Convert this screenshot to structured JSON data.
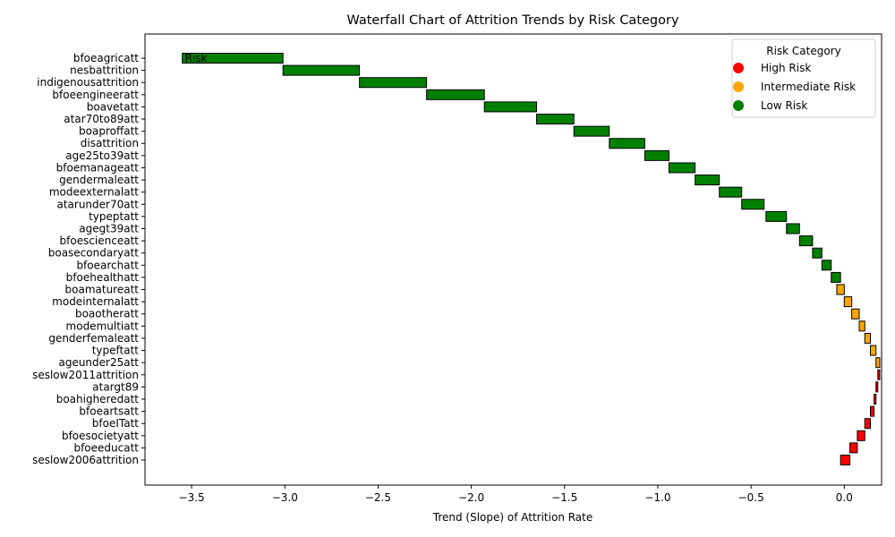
{
  "chart_data": {
    "type": "bar",
    "orientation": "horizontal-waterfall",
    "title": "Waterfall Chart of Attrition Trends by Risk Category",
    "xlabel": "Trend (Slope) of Attrition Rate",
    "ylabel": "",
    "xlim": [
      -3.75,
      0.2
    ],
    "xticks": [
      -3.5,
      -3.0,
      -2.5,
      -2.0,
      -1.5,
      -1.0,
      -0.5,
      0.0
    ],
    "xtick_labels": [
      "−3.5",
      "−3.0",
      "−2.5",
      "−2.0",
      "−1.5",
      "−1.0",
      "−0.5",
      "0.0"
    ],
    "grid": false,
    "bar_annotation": "Risk",
    "legend": {
      "title": "Risk Category",
      "placement": "top-right",
      "entries": [
        {
          "label": "High Risk",
          "color": "#ff0000"
        },
        {
          "label": "Intermediate Risk",
          "color": "#ffa500"
        },
        {
          "label": "Low Risk",
          "color": "#008000"
        }
      ]
    },
    "colors": {
      "High": "#ff0000",
      "Intermediate": "#ffa500",
      "Low": "#008000",
      "edge": "#000000"
    },
    "categories": [
      "bfoeagricatt",
      "nesbattrition",
      "indigenousattrition",
      "bfoeengineeratt",
      "boavetatt",
      "atar70to89att",
      "boaproffatt",
      "disattrition",
      "age25to39att",
      "bfoemanageatt",
      "gendermaleatt",
      "modeexternalatt",
      "atarunder70att",
      "typeptatt",
      "agegt39att",
      "bfoescienceatt",
      "boasecondaryatt",
      "bfoearchatt",
      "bfoehealthatt",
      "boamatureatt",
      "modeinternalatt",
      "boaotheratt",
      "modemultiatt",
      "genderfemaleatt",
      "typeftatt",
      "ageunder25att",
      "seslow2011attrition",
      "atargt89",
      "boahigheredatt",
      "bfoeartsatt",
      "bfoeITatt",
      "bfoesocietyatt",
      "bfoeeducatt",
      "seslow2006attrition"
    ],
    "values": [
      -0.54,
      -0.41,
      -0.36,
      -0.31,
      -0.28,
      -0.2,
      -0.19,
      -0.19,
      -0.13,
      -0.14,
      -0.13,
      -0.12,
      -0.12,
      -0.11,
      -0.07,
      -0.07,
      -0.05,
      -0.05,
      -0.05,
      -0.04,
      0.04,
      0.04,
      0.03,
      0.03,
      0.03,
      0.02,
      0.01,
      -0.01,
      -0.01,
      -0.02,
      -0.03,
      -0.04,
      -0.04,
      -0.05
    ],
    "starts": [
      -3.01,
      -2.6,
      -2.24,
      -1.93,
      -1.65,
      -1.45,
      -1.26,
      -1.07,
      -0.94,
      -0.8,
      -0.67,
      -0.55,
      -0.43,
      -0.31,
      -0.24,
      -0.17,
      -0.12,
      -0.07,
      -0.02,
      0.0,
      0.0,
      0.04,
      0.08,
      0.11,
      0.14,
      0.17,
      0.18,
      0.18,
      0.17,
      0.16,
      0.14,
      0.11,
      0.07,
      0.03
    ],
    "risk": [
      "Low",
      "Low",
      "Low",
      "Low",
      "Low",
      "Low",
      "Low",
      "Low",
      "Low",
      "Low",
      "Low",
      "Low",
      "Low",
      "Low",
      "Low",
      "Low",
      "Low",
      "Low",
      "Low",
      "Intermediate",
      "Intermediate",
      "Intermediate",
      "Intermediate",
      "Intermediate",
      "Intermediate",
      "Intermediate",
      "High",
      "High",
      "High",
      "High",
      "High",
      "High",
      "High",
      "High"
    ]
  }
}
